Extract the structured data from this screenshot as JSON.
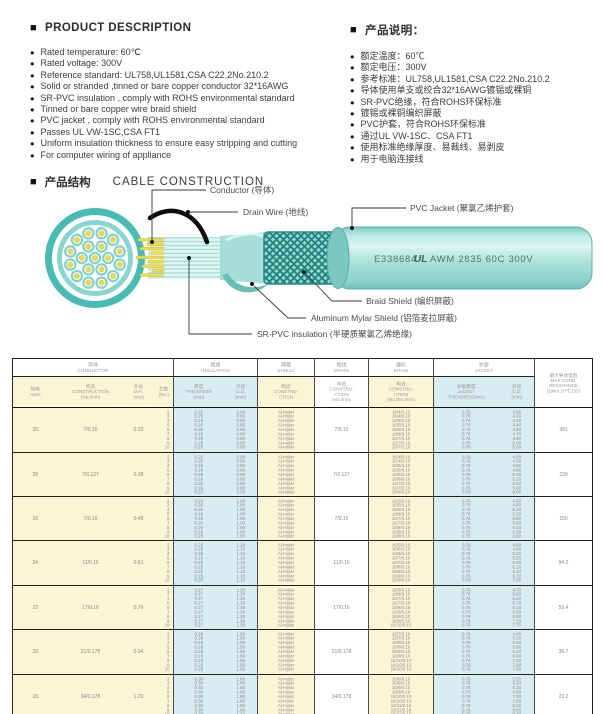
{
  "product_description": {
    "title": "PRODUCT DESCRIPTION",
    "items": [
      "Rated temperature: 60℃",
      "Rated voltage: 300V",
      "Reference standard: UL758,UL1581,CSA C22.2No.210.2",
      "Solid or stranded ,tinned or bare copper conductor 32*16AWG",
      "SR-PVC insulation , comply with ROHS environmental standard",
      "Tinned or bare copper wire braid shield",
      "PVC jacket , comply with ROHS environmental standard",
      "Passes UL VW-1SC,CSA FT1",
      "Uniform insulation thickness to ensure easy stripping and cutting",
      "For computer wiring of appliance"
    ]
  },
  "product_notes": {
    "title": "产品说明：",
    "items": [
      "额定温度：60℃",
      "额定电压：300V",
      "参考标准：UL758,UL1581,CSA C22.2No.210.2",
      "导体使用单支或绞合32*16AWG镀锡或裸铜",
      "SR-PVC绝缘，符合ROHS环保标准",
      "镀锡或裸铜编织屏蔽",
      "PVC护套，符合ROHS环保标准",
      "通过UL VW-1SC、CSA FT1",
      "使用标准绝缘厚度、易裁线、易剥皮",
      "用于电脑连接线"
    ]
  },
  "construction": {
    "section_title_zh": "产品结构",
    "section_title_en": "CABLE CONSTRUCTION",
    "labels": {
      "conductor": "Conductor (导体)",
      "drain": "Drain Wire (地线)",
      "pvc_jacket": "PVC Jacket (聚氯乙烯护套)",
      "braid": "Braid Shield (编织屏蔽)",
      "mylar": "Aluminum Mylar Shield (铝箔麦拉屏蔽)",
      "insulation": "SR-PVC insulation (半硬质聚氯乙烯绝缘)"
    },
    "print": {
      "cert": "E338684",
      "ul_mark": "UL",
      "spec": "AWM 2835 60C 300V"
    },
    "colors": {
      "cable_teal": "#9ADAD4",
      "conductor_yellow": "#F2DC4B",
      "braid_dark": "#20817B"
    }
  },
  "table": {
    "groups": [
      {
        "id": "conductor",
        "zh": "导体",
        "en": "CONDUCTOR"
      },
      {
        "id": "insulation",
        "zh": "绝缘",
        "en": "INSULATION"
      },
      {
        "id": "shield",
        "zh": "屏蔽",
        "en": "SHIELD"
      },
      {
        "id": "drain",
        "zh": "地线",
        "en": "DRAIN"
      },
      {
        "id": "braid",
        "zh": "编织",
        "en": "BRAID"
      },
      {
        "id": "jacket",
        "zh": "护套",
        "en": "JACKET"
      }
    ],
    "headers": {
      "awg": [
        "规格",
        "AWG"
      ],
      "construction": [
        "构造",
        "CONSTRUCTION",
        "(No./mm)"
      ],
      "dia": [
        "外径",
        "DIA.",
        "(mm)"
      ],
      "cores": [
        "芯数",
        "(No.)"
      ],
      "ins_thickness": [
        "厚度",
        "THICKNESS",
        "(mm)"
      ],
      "ins_od": [
        "外径",
        "O.D.",
        "(mm)"
      ],
      "shield": [
        "构造",
        "CONSTRU-",
        "CTION"
      ],
      "drain": [
        "构造",
        "CONSTRU-",
        "CTION",
        "(No./mm)"
      ],
      "braid": [
        "构造",
        "CONSTRU-",
        "CTION",
        "(No./No./mm)"
      ],
      "jacket_thickness": [
        "护套厚度",
        "JACKET",
        "THICKNESS(mm)"
      ],
      "jacket_od": [
        "外径",
        "O.D.",
        "(mm)"
      ],
      "resistance": [
        "最大导体电阻",
        "MAX COND.",
        "RESISTANCE",
        "(Ω/km,20℃,DC)"
      ]
    },
    "rows": [
      {
        "awg": "30",
        "construction": "7/0.10",
        "dia": "0.30",
        "cores": [
          "2",
          "3",
          "4",
          "5",
          "6",
          "7",
          "8",
          "9",
          "10"
        ],
        "ins_thickness": "0.25",
        "ins_od": "0.80",
        "shield": "Al-mylar",
        "drain": "7/0.10",
        "braid": [
          "16/4/0.10",
          "16/4/0.10",
          "16/5/0.10",
          "16/5/0.10",
          "16/6/0.10",
          "16/6/0.10",
          "16/7/0.10",
          "16/7/0.10",
          "16/7/0.10"
        ],
        "jacket_thickness": "0.76",
        "jacket_od": [
          "3.80",
          "4.10",
          "4.30",
          "4.40",
          "4.60",
          "4.70",
          "4.90",
          "5.00",
          "5.30"
        ],
        "resistance": "381"
      },
      {
        "awg": "28",
        "construction": "7/0.127",
        "dia": "0.38",
        "cores": [
          "2",
          "3",
          "4",
          "5",
          "6",
          "7",
          "8",
          "9",
          "10"
        ],
        "ins_thickness": "0.26",
        "ins_od": "0.90",
        "shield": "Al-mylar",
        "drain": "7/0.127",
        "braid": [
          "16/4/0.10",
          "16/4/0.10",
          "16/5/0.10",
          "16/5/0.10",
          "16/6/0.10",
          "16/6/0.10",
          "16/7/0.10",
          "16/7/0.10",
          "16/8/0.10"
        ],
        "jacket_thickness": "0.76",
        "jacket_od": [
          "4.00",
          "4.30",
          "4.60",
          "4.80",
          "5.00",
          "5.20",
          "5.50",
          "5.80",
          "6.00"
        ],
        "resistance": "239"
      },
      {
        "awg": "26",
        "construction": "7/0.16",
        "dia": "0.48",
        "cores": [
          "2",
          "3",
          "4",
          "5",
          "6",
          "7",
          "8",
          "9",
          "10"
        ],
        "ins_thickness": "0.26",
        "ins_od": "1.00",
        "shield": "Al-mylar",
        "drain": "7/0.16",
        "braid": [
          "16/5/0.10",
          "16/5/0.10",
          "16/6/0.10",
          "16/6/0.10",
          "16/7/0.10",
          "16/7/0.10",
          "16/8/0.10",
          "16/8/0.10",
          "16/8/0.10"
        ],
        "jacket_thickness": "0.76",
        "jacket_od": [
          "4.50",
          "4.80",
          "5.10",
          "5.30",
          "5.60",
          "5.80",
          "6.10",
          "6.30",
          "6.50"
        ],
        "resistance": "150"
      },
      {
        "awg": "24",
        "construction": "11/0.16",
        "dia": "0.61",
        "cores": [
          "2",
          "3",
          "4",
          "5",
          "6",
          "7",
          "8",
          "9",
          "10"
        ],
        "ins_thickness": "0.25",
        "ins_od": "1.10",
        "shield": "Al-mylar",
        "drain": "11/0.16",
        "braid": [
          "16/5/0.10",
          "16/6/0.10",
          "16/6/0.10",
          "16/7/0.10",
          "16/7/0.10",
          "16/8/0.10",
          "16/8/0.10",
          "16/9/0.10",
          "16/9/0.10"
        ],
        "jacket_thickness": "0.76",
        "jacket_od": [
          "4.60",
          "4.90",
          "5.20",
          "5.50",
          "5.80",
          "6.10",
          "6.40",
          "6.70",
          "7.00"
        ],
        "resistance": "94.2"
      },
      {
        "awg": "22",
        "construction": "17/0.16",
        "dia": "0.76",
        "cores": [
          "2",
          "3",
          "4",
          "5",
          "6",
          "7",
          "8",
          "9",
          "10"
        ],
        "ins_thickness": "0.27",
        "ins_od": "1.30",
        "shield": "Al-mylar",
        "drain": "17/0.16",
        "braid": [
          "16/6/0.10",
          "16/6/0.10",
          "16/7/0.10",
          "16/7/0.10",
          "16/8/0.10",
          "16/8/0.10",
          "16/9/0.10",
          "16/9/0.10",
          "16/10/0.10"
        ],
        "jacket_thickness": "0.76",
        "jacket_od": [
          "4.70",
          "5.00",
          "5.40",
          "5.70",
          "6.10",
          "6.50",
          "6.90",
          "7.30",
          "7.70"
        ],
        "resistance": "59.4"
      },
      {
        "awg": "20",
        "construction": "21/0.178",
        "dia": "0.94",
        "cores": [
          "2",
          "3",
          "4",
          "5",
          "6",
          "7",
          "8",
          "9",
          "10"
        ],
        "ins_thickness": "0.28",
        "ins_od": "1.50",
        "shield": "Al-mylar",
        "drain": "21/0.178",
        "braid": [
          "16/7/0.10",
          "16/7/0.10",
          "16/8/0.10",
          "16/8/0.10",
          "16/9/0.10",
          "16/9/0.10",
          "16/10/0.10",
          "16/10/0.10",
          "16/10/0.10"
        ],
        "jacket_thickness": "0.76",
        "jacket_od": [
          "4.80",
          "5.10",
          "5.50",
          "5.90",
          "6.40",
          "6.80",
          "7.30",
          "7.60",
          "7.90"
        ],
        "resistance": "36.7"
      },
      {
        "awg": "18",
        "construction": "34/0.178",
        "dia": "1.20",
        "cores": [
          "2",
          "3",
          "4",
          "5",
          "6",
          "7",
          "8",
          "9",
          "10"
        ],
        "ins_thickness": "0.30",
        "ins_od": "1.80",
        "shield": "Al-mylar",
        "drain": "34/0.178",
        "braid": [
          "16/8/0.10",
          "16/8/0.10",
          "16/9/0.10",
          "16/9/0.10",
          "16/10/0.10",
          "16/10/0.10",
          "16/11/0.10",
          "16/11/0.10",
          "16/12/0.10"
        ],
        "jacket_thickness": "0.76",
        "jacket_od": [
          "5.50",
          "5.90",
          "6.30",
          "6.80",
          "7.30",
          "7.60",
          "8.20",
          "8.80",
          "9.30"
        ],
        "resistance": "23.2"
      }
    ]
  }
}
